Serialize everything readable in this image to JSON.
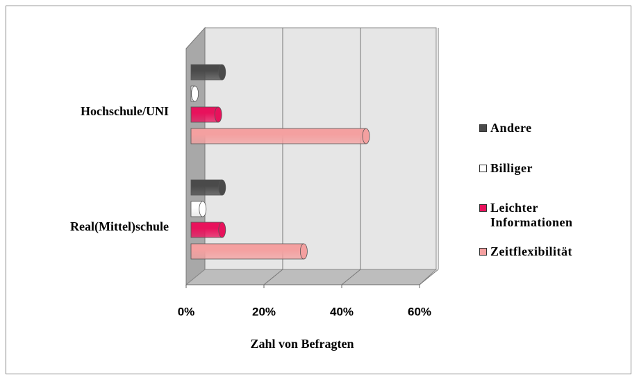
{
  "chart_data": {
    "type": "bar",
    "orientation": "horizontal",
    "xlabel": "Zahl von Befragten",
    "categories": [
      "Real(Mittel)schule",
      "Hochschule/UNI"
    ],
    "series": [
      {
        "name": "Andere",
        "color": "#4a4a4a",
        "values": [
          8,
          8
        ]
      },
      {
        "name": "Billiger",
        "color": "#ffffff",
        "values": [
          3,
          1
        ]
      },
      {
        "name": "Leichter Informationen",
        "color": "#e8125c",
        "values": [
          8,
          7
        ]
      },
      {
        "name": "Zeitflexibilität",
        "color": "#f4a0a0",
        "values": [
          29,
          45
        ]
      }
    ],
    "xlim": [
      0,
      60
    ],
    "xticks": [
      {
        "value": 0,
        "label": "0%"
      },
      {
        "value": 20,
        "label": "20%"
      },
      {
        "value": 40,
        "label": "40%"
      },
      {
        "value": 60,
        "label": "60%"
      }
    ],
    "grid": true,
    "legend": "right"
  }
}
